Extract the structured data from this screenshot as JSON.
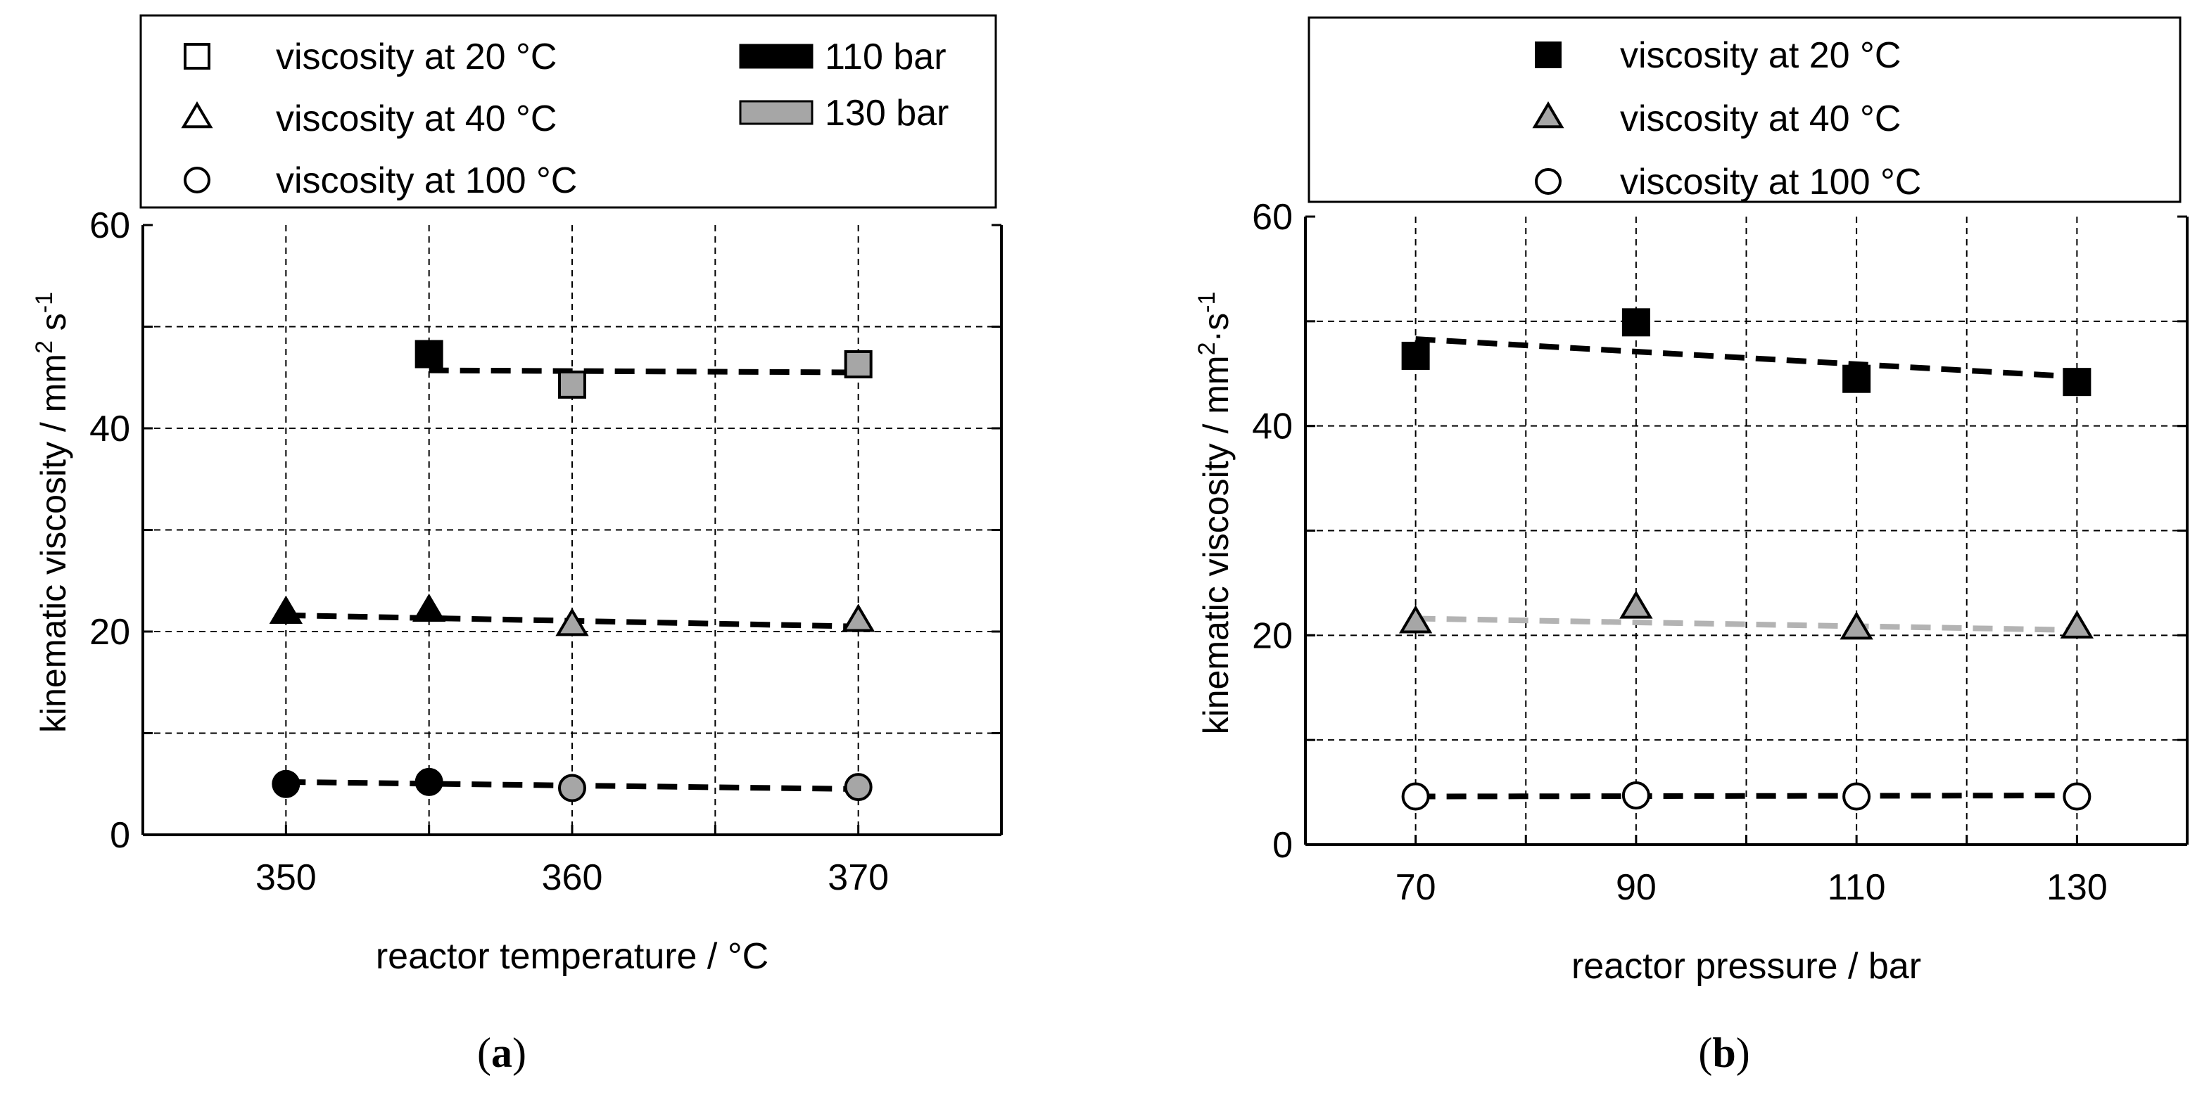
{
  "colors": {
    "black": "#000000",
    "gray": "#a6a6a6",
    "light_gray": "#b3b3b3",
    "white": "#ffffff"
  },
  "chart_data": [
    {
      "type": "scatter",
      "id": "a",
      "caption": "(a)",
      "xlabel": "reactor temperature / °C",
      "ylabel_main": "kinematic viscosity / mm",
      "ylabel_sup1": "2",
      "ylabel_mid": " s",
      "ylabel_sup2": "-1",
      "xlim": [
        345,
        375
      ],
      "ylim": [
        0,
        60
      ],
      "xticks": [
        350,
        360,
        370
      ],
      "yticks": [
        0,
        20,
        40,
        60
      ],
      "grid_x": [
        350,
        355,
        360,
        365,
        370
      ],
      "grid_y": [
        10,
        20,
        30,
        40,
        50
      ],
      "legend": {
        "placement": "top",
        "markers": [
          {
            "label": "viscosity at 20 °C",
            "symbol": "square"
          },
          {
            "label": "viscosity at 40 °C",
            "symbol": "triangle"
          },
          {
            "label": "viscosity at 100 °C",
            "symbol": "circle"
          }
        ],
        "fills": [
          {
            "label": "110 bar",
            "color": "#000000"
          },
          {
            "label": "130 bar",
            "color": "#a6a6a6"
          }
        ]
      },
      "series": [
        {
          "name": "viscosity at 20 °C",
          "symbol": "square",
          "points": [
            {
              "x": 355,
              "y": 47.3,
              "pressure": "110 bar"
            },
            {
              "x": 360,
              "y": 44.3,
              "pressure": "130 bar"
            },
            {
              "x": 370,
              "y": 46.3,
              "pressure": "130 bar"
            }
          ],
          "trend": {
            "from": [
              355,
              45.7
            ],
            "to": [
              370,
              45.5
            ],
            "color": "#000000"
          }
        },
        {
          "name": "viscosity at 40 °C",
          "symbol": "triangle",
          "points": [
            {
              "x": 350,
              "y": 21.8,
              "pressure": "110 bar"
            },
            {
              "x": 355,
              "y": 22.0,
              "pressure": "110 bar"
            },
            {
              "x": 360,
              "y": 20.6,
              "pressure": "130 bar"
            },
            {
              "x": 370,
              "y": 21.0,
              "pressure": "130 bar"
            }
          ],
          "trend": {
            "from": [
              350,
              21.6
            ],
            "to": [
              370,
              20.5
            ],
            "color": "#000000"
          }
        },
        {
          "name": "viscosity at 100 °C",
          "symbol": "circle",
          "points": [
            {
              "x": 350,
              "y": 5.0,
              "pressure": "110 bar"
            },
            {
              "x": 355,
              "y": 5.2,
              "pressure": "110 bar"
            },
            {
              "x": 360,
              "y": 4.6,
              "pressure": "130 bar"
            },
            {
              "x": 370,
              "y": 4.7,
              "pressure": "130 bar"
            }
          ],
          "trend": {
            "from": [
              350,
              5.2
            ],
            "to": [
              370,
              4.5
            ],
            "color": "#000000"
          }
        }
      ]
    },
    {
      "type": "scatter",
      "id": "b",
      "caption": "(b)",
      "xlabel": "reactor pressure / bar",
      "ylabel_main": "kinematic viscosity / mm",
      "ylabel_sup1": "2",
      "ylabel_mid": "·s",
      "ylabel_sup2": "-1",
      "xlim": [
        60,
        140
      ],
      "ylim": [
        0,
        60
      ],
      "xticks": [
        70,
        90,
        110,
        130
      ],
      "yticks": [
        0,
        20,
        40,
        60
      ],
      "grid_x": [
        70,
        80,
        90,
        100,
        110,
        120,
        130
      ],
      "grid_y": [
        10,
        20,
        30,
        40,
        50
      ],
      "legend": {
        "placement": "top",
        "markers": [
          {
            "label": "viscosity at 20 °C",
            "symbol": "square",
            "fill": "#000000"
          },
          {
            "label": "viscosity at 40 °C",
            "symbol": "triangle",
            "fill": "#a6a6a6"
          },
          {
            "label": "viscosity at 100 °C",
            "symbol": "circle",
            "fill": "#ffffff"
          }
        ],
        "fills": []
      },
      "series": [
        {
          "name": "viscosity at 20 °C",
          "symbol": "square",
          "fill": "#000000",
          "points": [
            {
              "x": 70,
              "y": 46.7
            },
            {
              "x": 90,
              "y": 49.9
            },
            {
              "x": 110,
              "y": 44.5
            },
            {
              "x": 130,
              "y": 44.2
            }
          ],
          "trend": {
            "from": [
              70,
              48.3
            ],
            "to": [
              130,
              44.7
            ],
            "color": "#000000"
          }
        },
        {
          "name": "viscosity at 40 °C",
          "symbol": "triangle",
          "fill": "#a6a6a6",
          "points": [
            {
              "x": 70,
              "y": 21.2
            },
            {
              "x": 90,
              "y": 22.6
            },
            {
              "x": 110,
              "y": 20.6
            },
            {
              "x": 130,
              "y": 20.7
            }
          ],
          "trend": {
            "from": [
              70,
              21.6
            ],
            "to": [
              130,
              20.5
            ],
            "color": "#b3b3b3"
          }
        },
        {
          "name": "viscosity at 100 °C",
          "symbol": "circle",
          "fill": "#ffffff",
          "points": [
            {
              "x": 70,
              "y": 4.6
            },
            {
              "x": 90,
              "y": 4.7
            },
            {
              "x": 110,
              "y": 4.6
            },
            {
              "x": 130,
              "y": 4.6
            }
          ],
          "trend": {
            "from": [
              70,
              4.6
            ],
            "to": [
              130,
              4.7
            ],
            "color": "#000000"
          }
        }
      ]
    }
  ]
}
